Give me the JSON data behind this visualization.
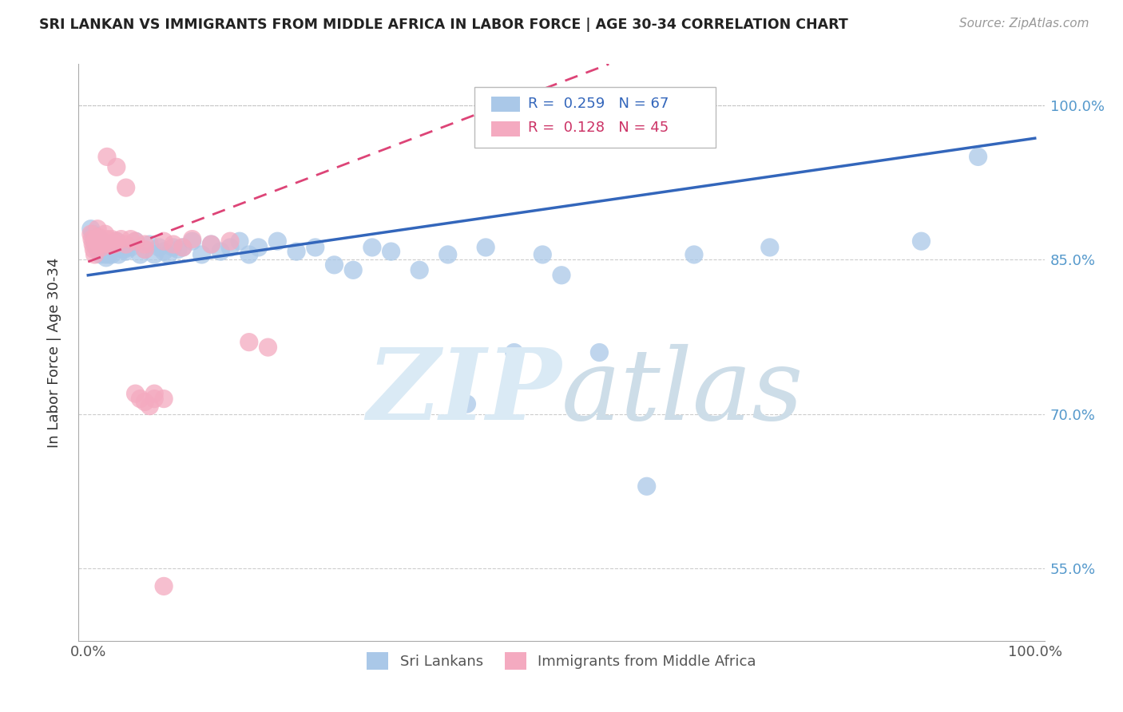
{
  "title": "SRI LANKAN VS IMMIGRANTS FROM MIDDLE AFRICA IN LABOR FORCE | AGE 30-34 CORRELATION CHART",
  "source": "Source: ZipAtlas.com",
  "ylabel": "In Labor Force | Age 30-34",
  "blue_R": "0.259",
  "blue_N": "67",
  "pink_R": "0.128",
  "pink_N": "45",
  "blue_color": "#aac8e8",
  "pink_color": "#f4aac0",
  "blue_line_color": "#3366bb",
  "pink_line_color": "#dd4477",
  "legend_label_blue": "Sri Lankans",
  "legend_label_pink": "Immigrants from Middle Africa",
  "xlim": [
    -0.01,
    1.01
  ],
  "ylim": [
    0.48,
    1.04
  ],
  "yticks": [
    0.55,
    0.7,
    0.85,
    1.0
  ],
  "yticklabels_right": [
    "55.0%",
    "70.0%",
    "85.0%",
    "100.0%"
  ],
  "blue_x": [
    0.003,
    0.005,
    0.006,
    0.007,
    0.008,
    0.009,
    0.01,
    0.011,
    0.012,
    0.013,
    0.014,
    0.015,
    0.016,
    0.017,
    0.018,
    0.019,
    0.02,
    0.021,
    0.022,
    0.023,
    0.025,
    0.027,
    0.03,
    0.032,
    0.035,
    0.038,
    0.04,
    0.045,
    0.05,
    0.055,
    0.06,
    0.065,
    0.07,
    0.075,
    0.08,
    0.085,
    0.09,
    0.095,
    0.1,
    0.11,
    0.12,
    0.13,
    0.14,
    0.15,
    0.16,
    0.17,
    0.18,
    0.2,
    0.22,
    0.24,
    0.26,
    0.28,
    0.3,
    0.32,
    0.35,
    0.38,
    0.4,
    0.42,
    0.45,
    0.48,
    0.5,
    0.54,
    0.59,
    0.64,
    0.72,
    0.88,
    0.94
  ],
  "blue_y": [
    0.88,
    0.875,
    0.87,
    0.865,
    0.868,
    0.862,
    0.86,
    0.858,
    0.87,
    0.855,
    0.862,
    0.858,
    0.865,
    0.86,
    0.855,
    0.852,
    0.858,
    0.862,
    0.855,
    0.86,
    0.855,
    0.862,
    0.868,
    0.855,
    0.862,
    0.86,
    0.858,
    0.862,
    0.868,
    0.855,
    0.86,
    0.865,
    0.855,
    0.862,
    0.858,
    0.855,
    0.862,
    0.86,
    0.862,
    0.868,
    0.855,
    0.865,
    0.858,
    0.862,
    0.868,
    0.855,
    0.862,
    0.868,
    0.858,
    0.862,
    0.845,
    0.84,
    0.862,
    0.858,
    0.84,
    0.855,
    0.71,
    0.862,
    0.76,
    0.855,
    0.835,
    0.76,
    0.63,
    0.855,
    0.862,
    0.868,
    0.95
  ],
  "pink_x": [
    0.003,
    0.004,
    0.005,
    0.006,
    0.007,
    0.008,
    0.009,
    0.01,
    0.011,
    0.012,
    0.013,
    0.014,
    0.015,
    0.016,
    0.018,
    0.02,
    0.022,
    0.025,
    0.028,
    0.03,
    0.035,
    0.04,
    0.045,
    0.05,
    0.055,
    0.06,
    0.065,
    0.07,
    0.08,
    0.09,
    0.1,
    0.11,
    0.13,
    0.15,
    0.17,
    0.19,
    0.05,
    0.06,
    0.07,
    0.08,
    0.02,
    0.03,
    0.04,
    0.06,
    0.08
  ],
  "pink_y": [
    0.875,
    0.87,
    0.865,
    0.86,
    0.855,
    0.87,
    0.868,
    0.88,
    0.872,
    0.865,
    0.87,
    0.862,
    0.868,
    0.865,
    0.875,
    0.87,
    0.865,
    0.87,
    0.865,
    0.868,
    0.87,
    0.865,
    0.87,
    0.72,
    0.715,
    0.712,
    0.708,
    0.715,
    0.868,
    0.865,
    0.862,
    0.87,
    0.865,
    0.868,
    0.77,
    0.765,
    0.868,
    0.865,
    0.72,
    0.715,
    0.95,
    0.94,
    0.92,
    0.86,
    0.533
  ],
  "blue_line_x0": 0.0,
  "blue_line_y0": 0.835,
  "blue_line_x1": 1.0,
  "blue_line_y1": 0.968,
  "pink_line_x0": 0.0,
  "pink_line_y0": 0.848,
  "pink_line_x1": 0.55,
  "pink_line_y1": 1.04
}
